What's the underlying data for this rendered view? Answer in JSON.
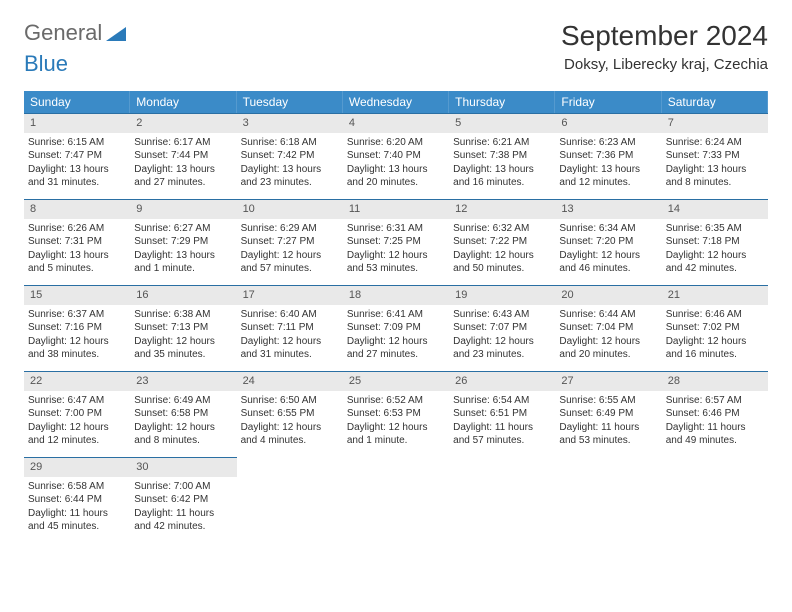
{
  "logo": {
    "word1": "General",
    "word2": "Blue"
  },
  "title": "September 2024",
  "location": "Doksy, Liberecky kraj, Czechia",
  "colors": {
    "header_bg": "#3b8bc8",
    "header_text": "#ffffff",
    "cell_border": "#2a6fa3",
    "daynum_bg": "#e9e9e9",
    "text": "#333333",
    "logo_gray": "#6a6a6a",
    "logo_blue": "#2a7ab9"
  },
  "days_of_week": [
    "Sunday",
    "Monday",
    "Tuesday",
    "Wednesday",
    "Thursday",
    "Friday",
    "Saturday"
  ],
  "days": [
    {
      "n": "1",
      "sunrise": "Sunrise: 6:15 AM",
      "sunset": "Sunset: 7:47 PM",
      "daylight": "Daylight: 13 hours and 31 minutes."
    },
    {
      "n": "2",
      "sunrise": "Sunrise: 6:17 AM",
      "sunset": "Sunset: 7:44 PM",
      "daylight": "Daylight: 13 hours and 27 minutes."
    },
    {
      "n": "3",
      "sunrise": "Sunrise: 6:18 AM",
      "sunset": "Sunset: 7:42 PM",
      "daylight": "Daylight: 13 hours and 23 minutes."
    },
    {
      "n": "4",
      "sunrise": "Sunrise: 6:20 AM",
      "sunset": "Sunset: 7:40 PM",
      "daylight": "Daylight: 13 hours and 20 minutes."
    },
    {
      "n": "5",
      "sunrise": "Sunrise: 6:21 AM",
      "sunset": "Sunset: 7:38 PM",
      "daylight": "Daylight: 13 hours and 16 minutes."
    },
    {
      "n": "6",
      "sunrise": "Sunrise: 6:23 AM",
      "sunset": "Sunset: 7:36 PM",
      "daylight": "Daylight: 13 hours and 12 minutes."
    },
    {
      "n": "7",
      "sunrise": "Sunrise: 6:24 AM",
      "sunset": "Sunset: 7:33 PM",
      "daylight": "Daylight: 13 hours and 8 minutes."
    },
    {
      "n": "8",
      "sunrise": "Sunrise: 6:26 AM",
      "sunset": "Sunset: 7:31 PM",
      "daylight": "Daylight: 13 hours and 5 minutes."
    },
    {
      "n": "9",
      "sunrise": "Sunrise: 6:27 AM",
      "sunset": "Sunset: 7:29 PM",
      "daylight": "Daylight: 13 hours and 1 minute."
    },
    {
      "n": "10",
      "sunrise": "Sunrise: 6:29 AM",
      "sunset": "Sunset: 7:27 PM",
      "daylight": "Daylight: 12 hours and 57 minutes."
    },
    {
      "n": "11",
      "sunrise": "Sunrise: 6:31 AM",
      "sunset": "Sunset: 7:25 PM",
      "daylight": "Daylight: 12 hours and 53 minutes."
    },
    {
      "n": "12",
      "sunrise": "Sunrise: 6:32 AM",
      "sunset": "Sunset: 7:22 PM",
      "daylight": "Daylight: 12 hours and 50 minutes."
    },
    {
      "n": "13",
      "sunrise": "Sunrise: 6:34 AM",
      "sunset": "Sunset: 7:20 PM",
      "daylight": "Daylight: 12 hours and 46 minutes."
    },
    {
      "n": "14",
      "sunrise": "Sunrise: 6:35 AM",
      "sunset": "Sunset: 7:18 PM",
      "daylight": "Daylight: 12 hours and 42 minutes."
    },
    {
      "n": "15",
      "sunrise": "Sunrise: 6:37 AM",
      "sunset": "Sunset: 7:16 PM",
      "daylight": "Daylight: 12 hours and 38 minutes."
    },
    {
      "n": "16",
      "sunrise": "Sunrise: 6:38 AM",
      "sunset": "Sunset: 7:13 PM",
      "daylight": "Daylight: 12 hours and 35 minutes."
    },
    {
      "n": "17",
      "sunrise": "Sunrise: 6:40 AM",
      "sunset": "Sunset: 7:11 PM",
      "daylight": "Daylight: 12 hours and 31 minutes."
    },
    {
      "n": "18",
      "sunrise": "Sunrise: 6:41 AM",
      "sunset": "Sunset: 7:09 PM",
      "daylight": "Daylight: 12 hours and 27 minutes."
    },
    {
      "n": "19",
      "sunrise": "Sunrise: 6:43 AM",
      "sunset": "Sunset: 7:07 PM",
      "daylight": "Daylight: 12 hours and 23 minutes."
    },
    {
      "n": "20",
      "sunrise": "Sunrise: 6:44 AM",
      "sunset": "Sunset: 7:04 PM",
      "daylight": "Daylight: 12 hours and 20 minutes."
    },
    {
      "n": "21",
      "sunrise": "Sunrise: 6:46 AM",
      "sunset": "Sunset: 7:02 PM",
      "daylight": "Daylight: 12 hours and 16 minutes."
    },
    {
      "n": "22",
      "sunrise": "Sunrise: 6:47 AM",
      "sunset": "Sunset: 7:00 PM",
      "daylight": "Daylight: 12 hours and 12 minutes."
    },
    {
      "n": "23",
      "sunrise": "Sunrise: 6:49 AM",
      "sunset": "Sunset: 6:58 PM",
      "daylight": "Daylight: 12 hours and 8 minutes."
    },
    {
      "n": "24",
      "sunrise": "Sunrise: 6:50 AM",
      "sunset": "Sunset: 6:55 PM",
      "daylight": "Daylight: 12 hours and 4 minutes."
    },
    {
      "n": "25",
      "sunrise": "Sunrise: 6:52 AM",
      "sunset": "Sunset: 6:53 PM",
      "daylight": "Daylight: 12 hours and 1 minute."
    },
    {
      "n": "26",
      "sunrise": "Sunrise: 6:54 AM",
      "sunset": "Sunset: 6:51 PM",
      "daylight": "Daylight: 11 hours and 57 minutes."
    },
    {
      "n": "27",
      "sunrise": "Sunrise: 6:55 AM",
      "sunset": "Sunset: 6:49 PM",
      "daylight": "Daylight: 11 hours and 53 minutes."
    },
    {
      "n": "28",
      "sunrise": "Sunrise: 6:57 AM",
      "sunset": "Sunset: 6:46 PM",
      "daylight": "Daylight: 11 hours and 49 minutes."
    },
    {
      "n": "29",
      "sunrise": "Sunrise: 6:58 AM",
      "sunset": "Sunset: 6:44 PM",
      "daylight": "Daylight: 11 hours and 45 minutes."
    },
    {
      "n": "30",
      "sunrise": "Sunrise: 7:00 AM",
      "sunset": "Sunset: 6:42 PM",
      "daylight": "Daylight: 11 hours and 42 minutes."
    }
  ],
  "trailing_empty": 5
}
